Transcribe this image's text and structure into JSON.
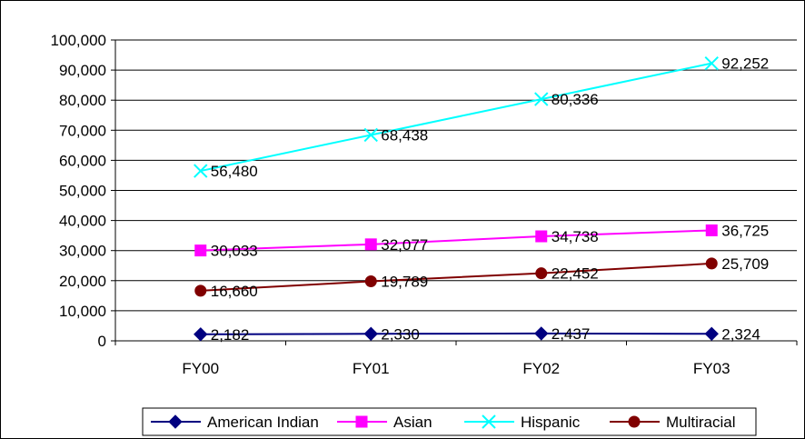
{
  "chart_data": {
    "type": "line",
    "title": "",
    "xlabel": "",
    "ylabel": "",
    "categories": [
      "FY00",
      "FY01",
      "FY02",
      "FY03"
    ],
    "ylim": [
      0,
      100000
    ],
    "yticks": [
      0,
      10000,
      20000,
      30000,
      40000,
      50000,
      60000,
      70000,
      80000,
      90000,
      100000
    ],
    "ytick_labels": [
      "0",
      "10,000",
      "20,000",
      "30,000",
      "40,000",
      "50,000",
      "60,000",
      "70,000",
      "80,000",
      "90,000",
      "100,000"
    ],
    "grid": true,
    "legend_position": "bottom",
    "series": [
      {
        "name": "American Indian",
        "color": "#000080",
        "marker": "diamond",
        "values": [
          2182,
          2330,
          2437,
          2324
        ],
        "labels": [
          "2,182",
          "2,330",
          "2,437",
          "2,324"
        ]
      },
      {
        "name": "Asian",
        "color": "#FF00FF",
        "marker": "square",
        "values": [
          30033,
          32077,
          34738,
          36725
        ],
        "labels": [
          "30,033",
          "32,077",
          "34,738",
          "36,725"
        ]
      },
      {
        "name": "Hispanic",
        "color": "#00FFFF",
        "marker": "x",
        "values": [
          56480,
          68438,
          80336,
          92252
        ],
        "labels": [
          "56,480",
          "68,438",
          "80,336",
          "92,252"
        ]
      },
      {
        "name": "Multiracial",
        "color": "#800000",
        "marker": "circle",
        "values": [
          16660,
          19789,
          22452,
          25709
        ],
        "labels": [
          "16,660",
          "19,789",
          "22,452",
          "25,709"
        ]
      }
    ]
  }
}
